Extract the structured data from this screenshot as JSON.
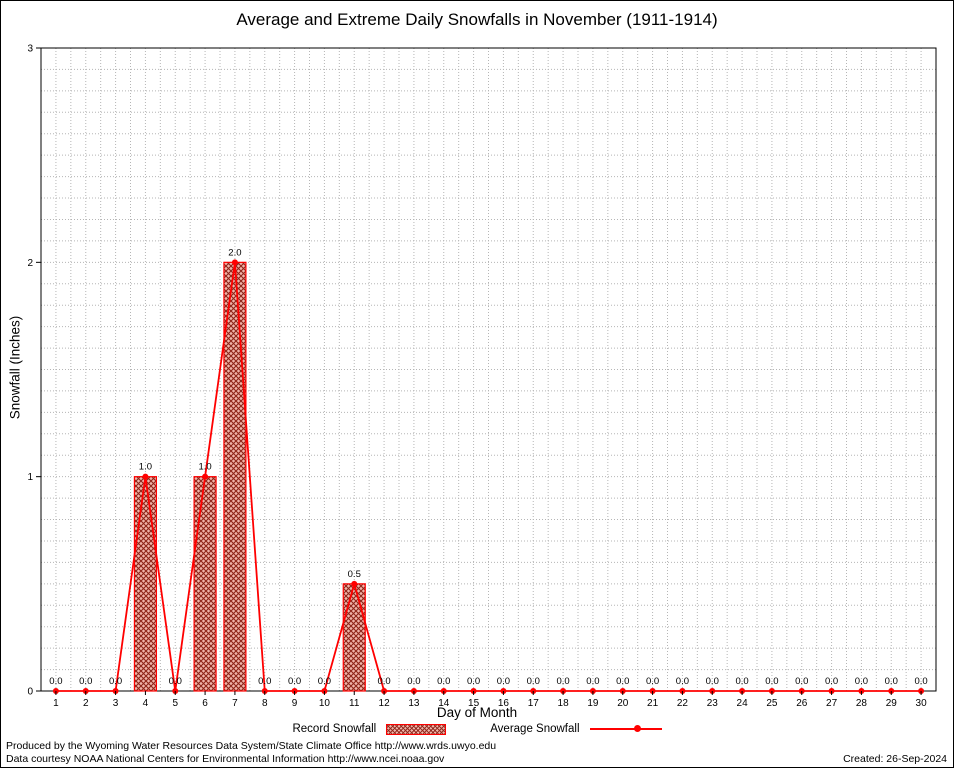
{
  "page": {
    "footer_line1": "Produced by the Wyoming Water Resources Data System/State Climate Office http://www.wrds.uwyo.edu",
    "footer_line2": "Data courtesy NOAA National Centers for Environmental Information http://www.ncei.noaa.gov",
    "created": "Created: 26-Sep-2024"
  },
  "chart_data": {
    "type": "bar",
    "title": "Average and Extreme Daily Snowfalls in November (1911-1914)",
    "xlabel": "Day of Month",
    "ylabel": "Snowfall (Inches)",
    "days": [
      1,
      2,
      3,
      4,
      5,
      6,
      7,
      8,
      9,
      10,
      11,
      12,
      13,
      14,
      15,
      16,
      17,
      18,
      19,
      20,
      21,
      22,
      23,
      24,
      25,
      26,
      27,
      28,
      29,
      30
    ],
    "series": [
      {
        "name": "Record Snowfall",
        "type": "bar",
        "values": [
          0,
          0,
          0,
          1.0,
          0,
          1.0,
          2.0,
          0,
          0,
          0,
          0.5,
          0,
          0,
          0,
          0,
          0,
          0,
          0,
          0,
          0,
          0,
          0,
          0,
          0,
          0,
          0,
          0,
          0,
          0,
          0
        ]
      },
      {
        "name": "Average Snowfall",
        "type": "line",
        "values": [
          0,
          0,
          0,
          1.0,
          0,
          1.0,
          2.0,
          0,
          0,
          0,
          0.5,
          0,
          0,
          0,
          0,
          0,
          0,
          0,
          0,
          0,
          0,
          0,
          0,
          0,
          0,
          0,
          0,
          0,
          0,
          0
        ]
      }
    ],
    "point_labels": [
      "0.0",
      "0.0",
      "0.0",
      "1.0",
      "0.0",
      "1.0",
      "2.0",
      "0.0",
      "0.0",
      "0.0",
      "0.5",
      "0.0",
      "0.0",
      "0.0",
      "0.0",
      "0.0",
      "0.0",
      "0.0",
      "0.0",
      "0.0",
      "0.0",
      "0.0",
      "0.0",
      "0.0",
      "0.0",
      "0.0",
      "0.0",
      "0.0",
      "0.0",
      "0.0"
    ],
    "ylim": [
      0,
      3
    ],
    "yticks": [
      0,
      1,
      2,
      3
    ],
    "grid": true,
    "legend_position": "bottom",
    "colors": {
      "line": "#ff0000",
      "marker": "#ff0000",
      "bar_stroke": "#ff0000",
      "bar_hatch": "#8e2418",
      "bar_bg": "#f0b4aa",
      "grid": "#b5b5b5",
      "axis": "#000000",
      "text": "#000000"
    }
  }
}
